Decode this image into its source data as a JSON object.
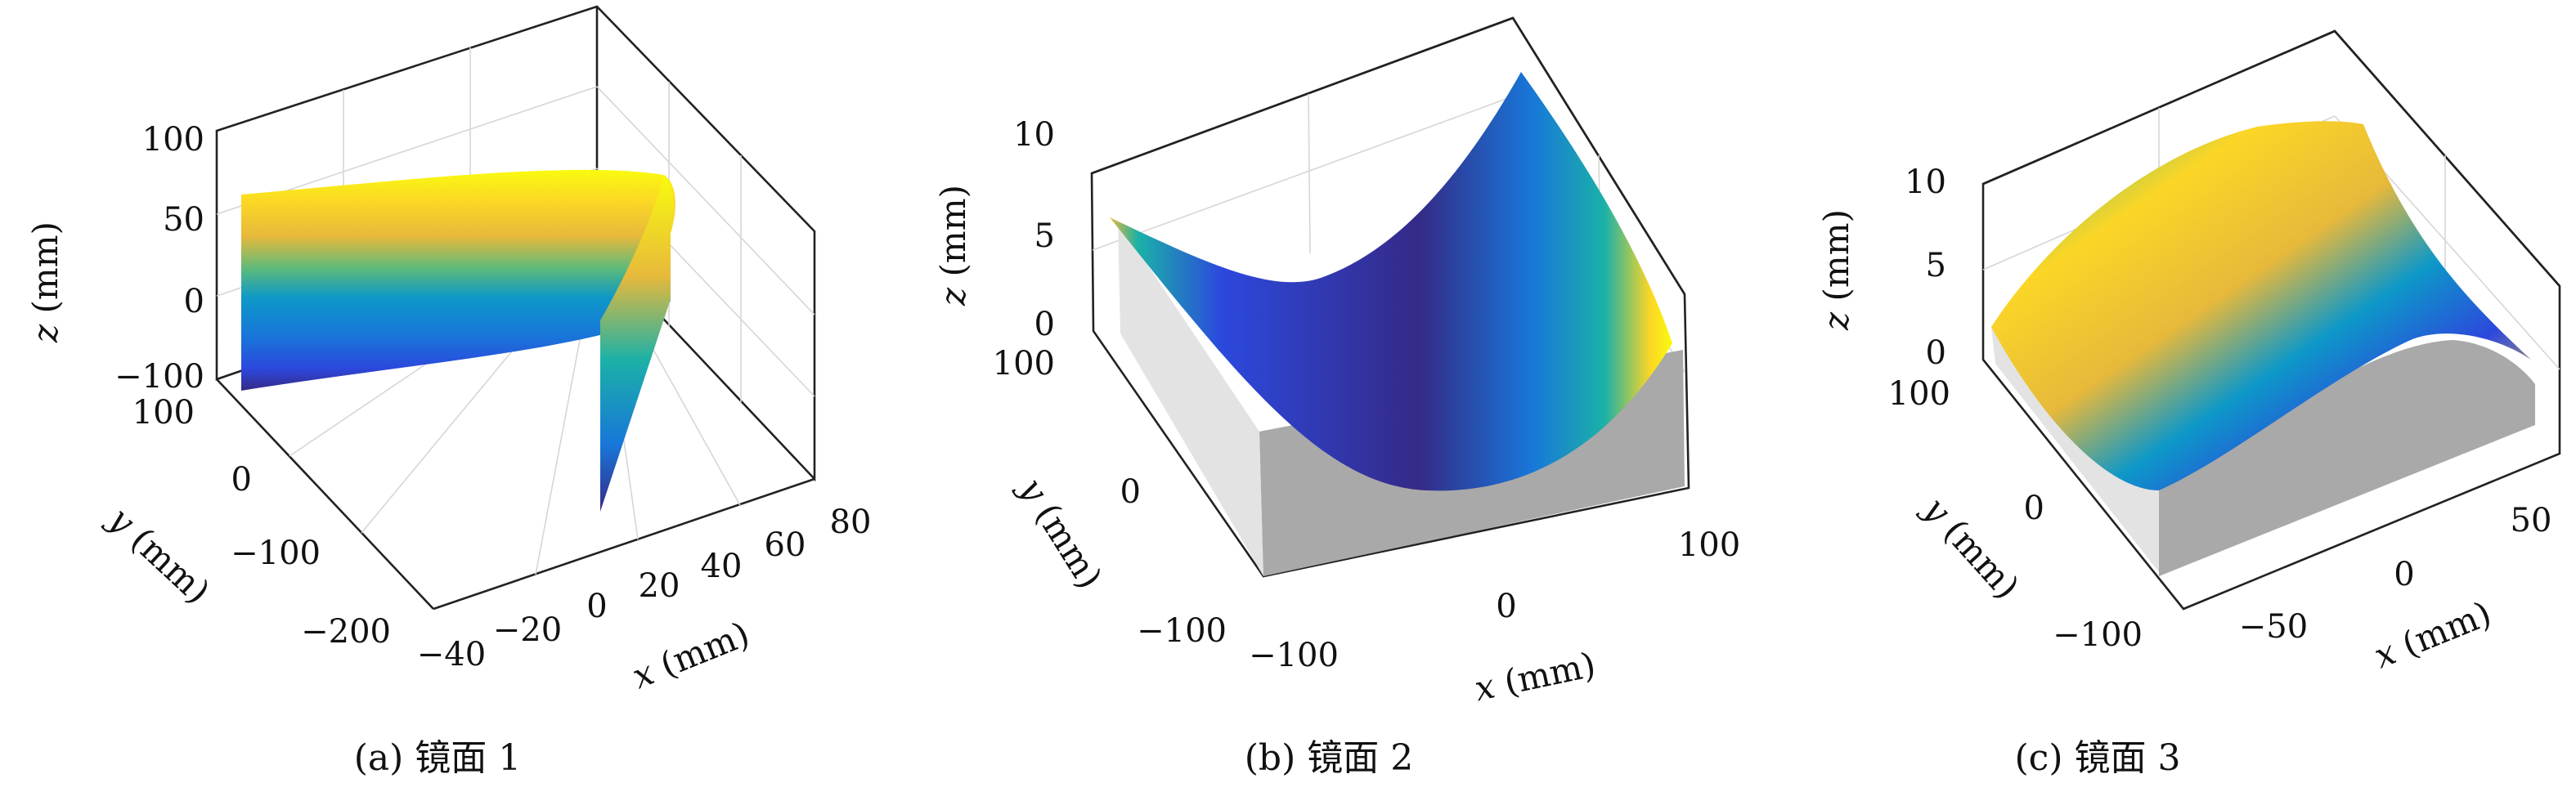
{
  "colors": {
    "parula": [
      "#352a87",
      "#2c48dd",
      "#1877d9",
      "#0d98c8",
      "#1bb1a7",
      "#5aba7c",
      "#a9bf4e",
      "#e7b93b",
      "#fbd626",
      "#f9fb0e"
    ],
    "grey": "#a8a8a8",
    "grey_light": "#e1e1e1"
  },
  "chart_data": [
    {
      "type": "surface",
      "caption": "(a) 镜面 1",
      "xlabel": "x (mm)",
      "ylabel": "y (mm)",
      "zlabel": "z (mm)",
      "xlim": [
        -40,
        80
      ],
      "ylim": [
        -200,
        100
      ],
      "zlim": [
        -100,
        100
      ],
      "xticks": [
        "−40",
        "−20",
        "0",
        "20",
        "40",
        "60",
        "80"
      ],
      "yticks": [
        "−200",
        "−100",
        "0",
        "100"
      ],
      "zticks": [
        "−100",
        "0",
        "50",
        "100"
      ]
    },
    {
      "type": "surface",
      "caption": "(b) 镜面 2",
      "xlabel": "x (mm)",
      "ylabel": "y (mm)",
      "zlabel": "z (mm)",
      "xlim": [
        -100,
        100
      ],
      "ylim": [
        -100,
        100
      ],
      "zlim": [
        0,
        10
      ],
      "xticks": [
        "−100",
        "0",
        "100"
      ],
      "yticks": [
        "−100",
        "0",
        "100"
      ],
      "zticks": [
        "0",
        "5",
        "10"
      ]
    },
    {
      "type": "surface",
      "caption": "(c) 镜面 3",
      "xlabel": "x (mm)",
      "ylabel": "y (mm)",
      "zlabel": "z (mm)",
      "xlim": [
        -80,
        80
      ],
      "ylim": [
        -100,
        100
      ],
      "zlim": [
        0,
        10
      ],
      "xticks": [
        "−50",
        "0",
        "50"
      ],
      "yticks": [
        "−100",
        "0",
        "100"
      ],
      "zticks": [
        "0",
        "5",
        "10"
      ]
    }
  ]
}
